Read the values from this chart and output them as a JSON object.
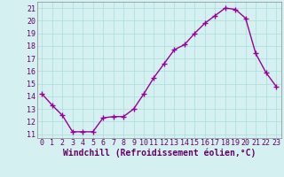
{
  "x": [
    0,
    1,
    2,
    3,
    4,
    5,
    6,
    7,
    8,
    9,
    10,
    11,
    12,
    13,
    14,
    15,
    16,
    17,
    18,
    19,
    20,
    21,
    22,
    23
  ],
  "y": [
    14.2,
    13.3,
    12.5,
    11.2,
    11.2,
    11.2,
    12.3,
    12.4,
    12.4,
    13.0,
    14.2,
    15.5,
    16.6,
    17.7,
    18.1,
    19.0,
    19.8,
    20.4,
    21.0,
    20.9,
    20.2,
    17.4,
    15.9,
    14.8
  ],
  "line_color": "#990099",
  "marker": "+",
  "bg_color": "#d4f0f0",
  "grid_color": "#aadddd",
  "xlabel": "Windchill (Refroidissement éolien,°C)",
  "ylabel_ticks": [
    11,
    12,
    13,
    14,
    15,
    16,
    17,
    18,
    19,
    20,
    21
  ],
  "xlim": [
    -0.5,
    23.5
  ],
  "ylim": [
    10.7,
    21.5
  ],
  "xlabel_fontsize": 7.0,
  "tick_fontsize": 6.0,
  "line_width": 1.0,
  "marker_size": 4.0
}
